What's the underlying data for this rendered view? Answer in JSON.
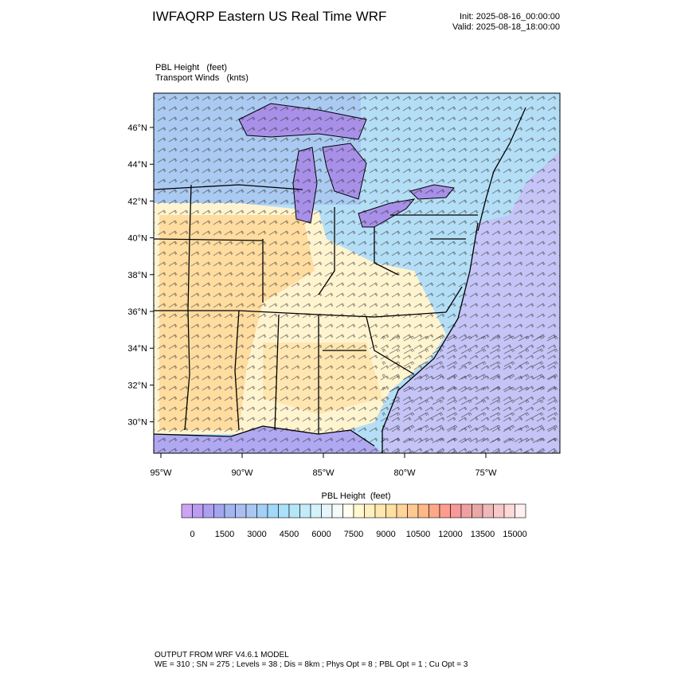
{
  "header": {
    "title": "IWFAQRP Eastern US Real Time WRF",
    "init": "Init: 2025-08-16_00:00:00",
    "valid": "Valid: 2025-08-18_18:00:00"
  },
  "map": {
    "field_label": "PBL Height   (feet)",
    "wind_label": "Transport Winds   (knts)",
    "lat_labels": [
      "46°N",
      "44°N",
      "42°N",
      "40°N",
      "38°N",
      "36°N",
      "34°N",
      "32°N",
      "30°N"
    ],
    "lon_labels": [
      "95°W",
      "90°W",
      "85°W",
      "80°W",
      "75°W"
    ]
  },
  "colorbar": {
    "title": "PBL Height  (feet)",
    "labels": [
      0,
      1500,
      3000,
      4500,
      6000,
      7500,
      9000,
      10500,
      12000,
      13500,
      15000
    ],
    "colors": [
      "#cca4f4",
      "#bc9cf0",
      "#ae9ef0",
      "#a2a6f0",
      "#a4b4f0",
      "#aabef2",
      "#a8c8f2",
      "#a2d0f6",
      "#a2d8f8",
      "#aae0f8",
      "#b4e6f8",
      "#c4ecf8",
      "#d4f2fa",
      "#e4f6fa",
      "#f2fafa",
      "#fffff0",
      "#fff8d0",
      "#fff0c0",
      "#ffe8b0",
      "#ffe0a0",
      "#ffd498",
      "#ffc890",
      "#ffb888",
      "#ffa888",
      "#ff9c90",
      "#f89898",
      "#f0a0a0",
      "#e8a8a8",
      "#f0b8b8",
      "#f8c8c8",
      "#ffd8d8",
      "#fff0f0"
    ]
  },
  "footer": {
    "line1": "OUTPUT FROM WRF V4.6.1 MODEL",
    "line2": "WE = 310 ; SN = 275 ; Levels = 38 ; Dis = 8km ; Phys Opt = 8 ; PBL Opt = 1 ; Cu Opt = 3"
  }
}
